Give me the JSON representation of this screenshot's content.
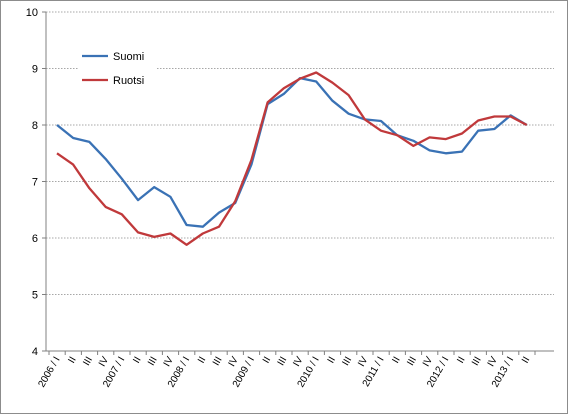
{
  "chart_data": {
    "type": "line",
    "title": "",
    "xlabel": "",
    "ylabel": "",
    "ylim": [
      4,
      10
    ],
    "yticks": [
      "4",
      "5",
      "6",
      "7",
      "8",
      "9",
      "10"
    ],
    "grid": true,
    "legend_position": "top-left",
    "categories": [
      "2006 / I",
      "II",
      "III",
      "IV",
      "2007 / I",
      "II",
      "III",
      "IV",
      "2008 / I",
      "II",
      "III",
      "IV",
      "2009 / I",
      "II",
      "III",
      "IV",
      "2010 / I",
      "II",
      "III",
      "IV",
      "2011 / I",
      "II",
      "III",
      "IV",
      "2012 / I",
      "II",
      "III",
      "IV",
      "2013 / I",
      "II"
    ],
    "series": [
      {
        "name": "Suomi",
        "color": "#3a72b5",
        "values": [
          8.0,
          7.77,
          7.7,
          7.4,
          7.05,
          6.67,
          6.9,
          6.73,
          6.23,
          6.2,
          6.45,
          6.62,
          7.3,
          8.37,
          8.55,
          8.83,
          8.77,
          8.43,
          8.2,
          8.1,
          8.07,
          7.82,
          7.72,
          7.55,
          7.5,
          7.53,
          7.9,
          7.93,
          8.17,
          8.0
        ]
      },
      {
        "name": "Ruotsi",
        "color": "#c0393b",
        "values": [
          7.5,
          7.3,
          6.88,
          6.55,
          6.42,
          6.1,
          6.02,
          6.08,
          5.88,
          6.08,
          6.2,
          6.65,
          7.38,
          8.4,
          8.65,
          8.82,
          8.93,
          8.75,
          8.53,
          8.1,
          7.9,
          7.82,
          7.63,
          7.78,
          7.75,
          7.85,
          8.08,
          8.15,
          8.15,
          8.0
        ]
      }
    ]
  }
}
